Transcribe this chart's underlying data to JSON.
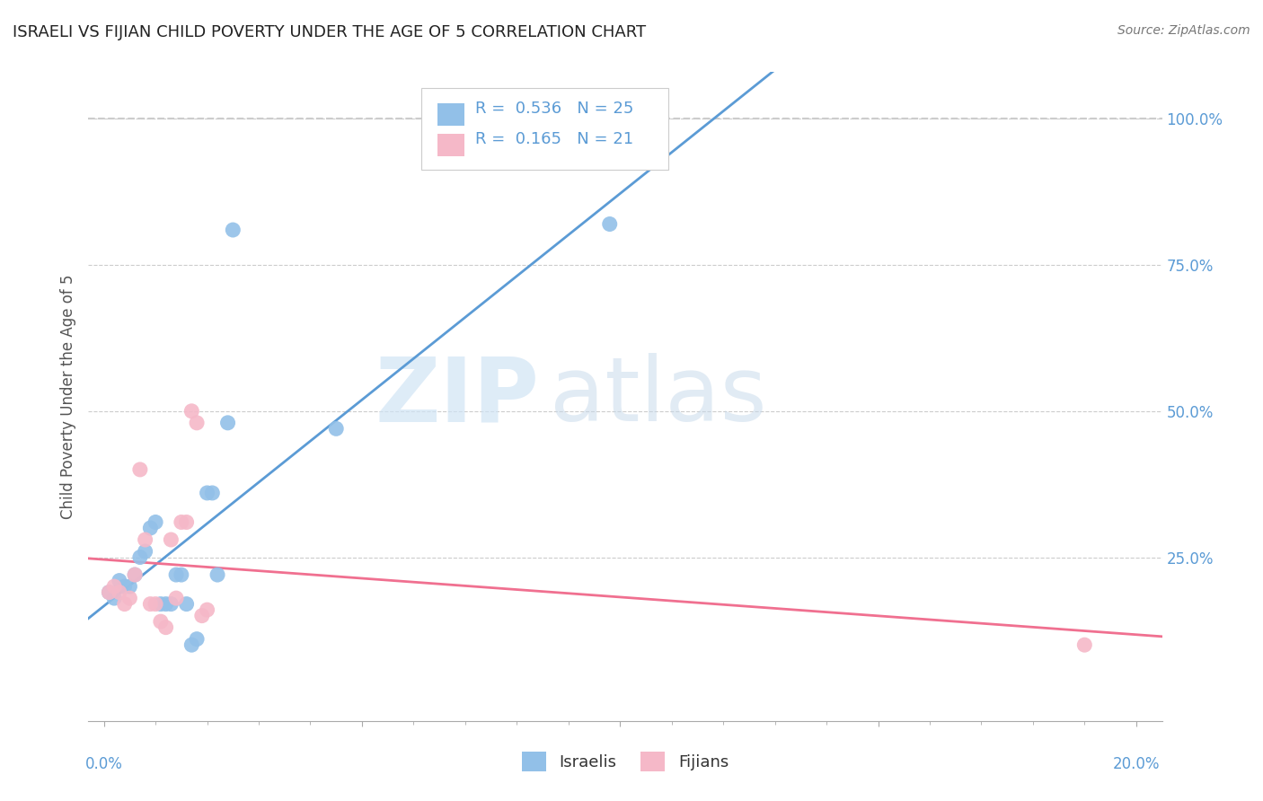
{
  "title": "ISRAELI VS FIJIAN CHILD POVERTY UNDER THE AGE OF 5 CORRELATION CHART",
  "source": "Source: ZipAtlas.com",
  "ylabel": "Child Poverty Under the Age of 5",
  "legend_israeli_R": 0.536,
  "legend_israeli_N": 25,
  "legend_fijian_R": 0.165,
  "legend_fijian_N": 21,
  "israeli_color": "#92c0e8",
  "fijian_color": "#f5b8c8",
  "israeli_line_color": "#5b9bd5",
  "fijian_line_color": "#f07090",
  "diagonal_color": "#cccccc",
  "background_color": "#ffffff",
  "grid_color": "#cccccc",
  "axis_label_color": "#5b9bd5",
  "title_color": "#222222",
  "israeli_points_x": [
    0.1,
    0.2,
    0.3,
    0.4,
    0.5,
    0.6,
    0.7,
    0.8,
    0.9,
    1.0,
    1.1,
    1.2,
    1.3,
    1.4,
    1.5,
    1.6,
    1.7,
    1.8,
    2.0,
    2.1,
    2.2,
    2.4,
    2.5,
    4.5,
    9.8
  ],
  "israeli_points_y": [
    19,
    18,
    21,
    20,
    20,
    22,
    25,
    26,
    30,
    31,
    17,
    17,
    17,
    22,
    22,
    17,
    10,
    11,
    36,
    36,
    22,
    48,
    81,
    47,
    82
  ],
  "fijian_points_x": [
    0.1,
    0.2,
    0.3,
    0.4,
    0.5,
    0.6,
    0.7,
    0.8,
    0.9,
    1.0,
    1.1,
    1.2,
    1.3,
    1.4,
    1.5,
    1.6,
    1.7,
    1.8,
    1.9,
    2.0,
    19.0
  ],
  "fijian_points_y": [
    19,
    20,
    19,
    17,
    18,
    22,
    40,
    28,
    17,
    17,
    14,
    13,
    28,
    18,
    31,
    31,
    50,
    48,
    15,
    16,
    10
  ],
  "xmin": -0.3,
  "xmax": 20.5,
  "ymin": -3,
  "ymax": 108
}
